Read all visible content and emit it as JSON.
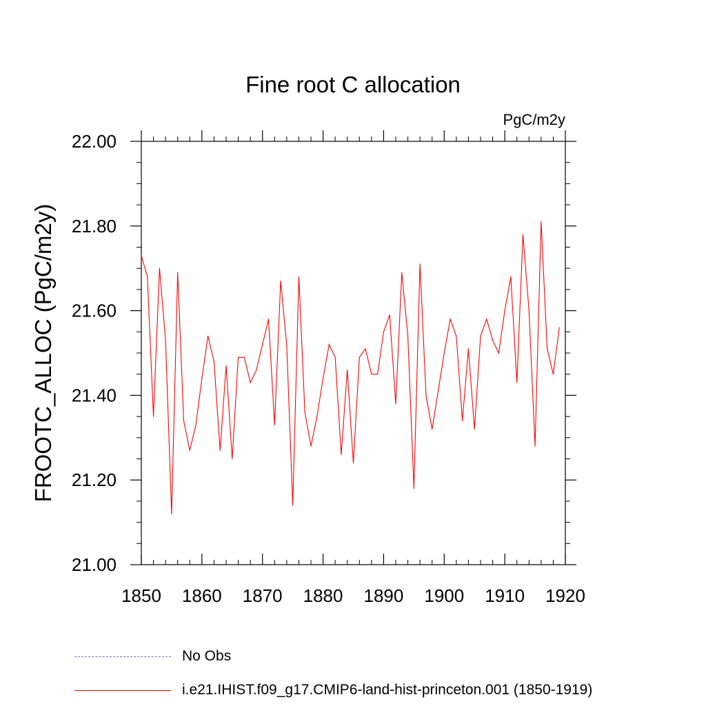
{
  "chart_data": {
    "type": "line",
    "title": "Fine root C allocation",
    "units": "PgC/m2y",
    "xlabel": "",
    "ylabel": "FROOTC_ALLOC  (PgC/m2y)",
    "xlim": [
      1850,
      1920
    ],
    "ylim": [
      21.0,
      22.0
    ],
    "xticks": [
      1850,
      1860,
      1870,
      1880,
      1890,
      1900,
      1910,
      1920
    ],
    "yticks": [
      "21.00",
      "21.20",
      "21.40",
      "21.60",
      "21.80",
      "22.00"
    ],
    "grid": false,
    "legend_position": "bottom",
    "series": [
      {
        "name": "i.e21.IHIST.f09_g17.CMIP6-land-hist-princeton.001 (1850-1919)",
        "color": "#ff0000",
        "x": [
          1850,
          1851,
          1852,
          1853,
          1854,
          1855,
          1856,
          1857,
          1858,
          1859,
          1860,
          1861,
          1862,
          1863,
          1864,
          1865,
          1866,
          1867,
          1868,
          1869,
          1870,
          1871,
          1872,
          1873,
          1874,
          1875,
          1876,
          1877,
          1878,
          1879,
          1880,
          1881,
          1882,
          1883,
          1884,
          1885,
          1886,
          1887,
          1888,
          1889,
          1890,
          1891,
          1892,
          1893,
          1894,
          1895,
          1896,
          1897,
          1898,
          1899,
          1900,
          1901,
          1902,
          1903,
          1904,
          1905,
          1906,
          1907,
          1908,
          1909,
          1910,
          1911,
          1912,
          1913,
          1914,
          1915,
          1916,
          1917,
          1918,
          1919
        ],
        "values": [
          21.73,
          21.68,
          21.35,
          21.7,
          21.53,
          21.12,
          21.69,
          21.34,
          21.27,
          21.33,
          21.44,
          21.54,
          21.48,
          21.27,
          21.47,
          21.25,
          21.49,
          21.49,
          21.43,
          21.46,
          21.52,
          21.58,
          21.33,
          21.67,
          21.52,
          21.14,
          21.68,
          21.36,
          21.28,
          21.35,
          21.44,
          21.52,
          21.49,
          21.26,
          21.46,
          21.24,
          21.49,
          21.51,
          21.45,
          21.45,
          21.55,
          21.59,
          21.38,
          21.69,
          21.54,
          21.18,
          21.71,
          21.4,
          21.32,
          21.41,
          21.5,
          21.58,
          21.54,
          21.34,
          21.51,
          21.32,
          21.54,
          21.58,
          21.53,
          21.5,
          21.6,
          21.68,
          21.43,
          21.78,
          21.6,
          21.28,
          21.81,
          21.51,
          21.45,
          21.56
        ]
      }
    ]
  },
  "legend": [
    {
      "label": "No Obs",
      "color": "#7b68c8",
      "style": "dashed"
    },
    {
      "label": "i.e21.IHIST.f09_g17.CMIP6-land-hist-princeton.001 (1850-1919)",
      "color": "#ff0000",
      "style": "solid"
    }
  ]
}
